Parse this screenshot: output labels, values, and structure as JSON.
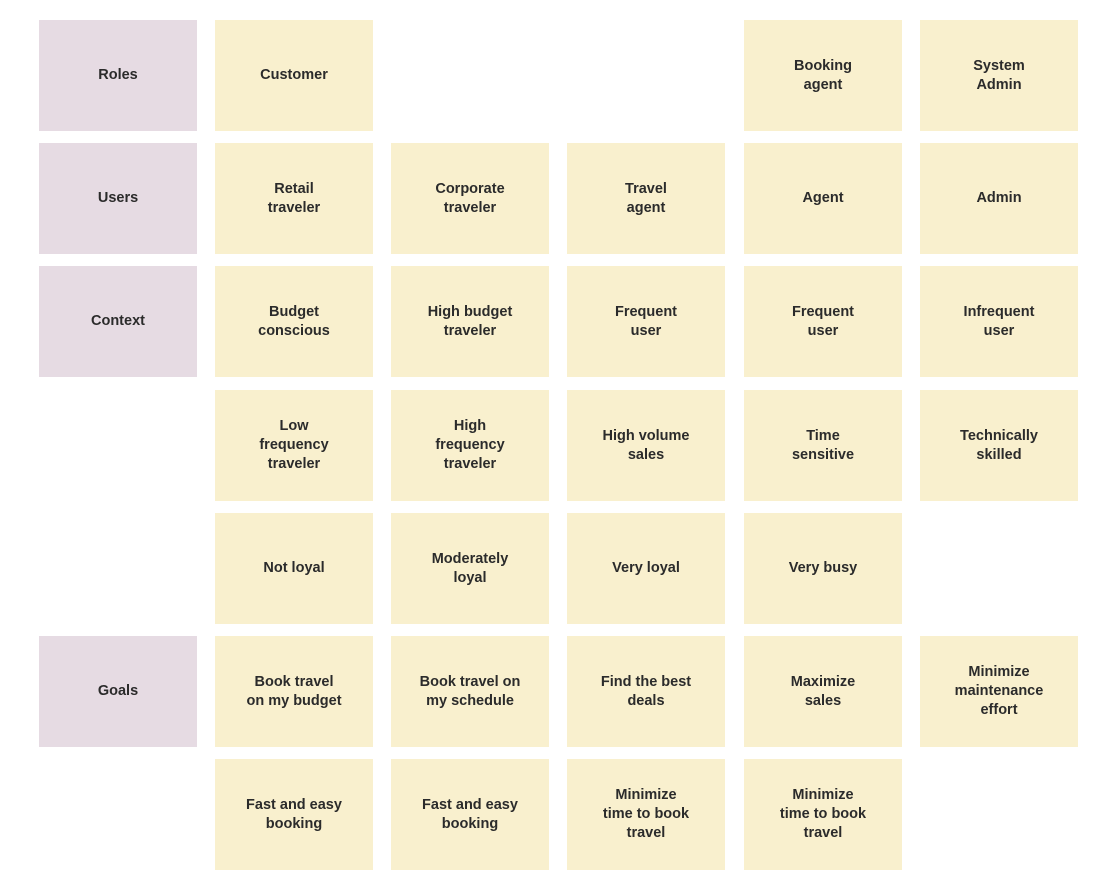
{
  "headers": {
    "roles": "Roles",
    "users": "Users",
    "context": "Context",
    "goals": "Goals"
  },
  "roles": {
    "customer": "Customer",
    "booking_agent": "Booking\nagent",
    "system_admin": "System\nAdmin"
  },
  "users": {
    "retail": "Retail\ntraveler",
    "corporate": "Corporate\ntraveler",
    "travel_agent": "Travel\nagent",
    "agent": "Agent",
    "admin": "Admin"
  },
  "context": {
    "row1": [
      "Budget\nconscious",
      "High budget\ntraveler",
      "Frequent\nuser",
      "Frequent\nuser",
      "Infrequent\nuser"
    ],
    "row2": [
      "Low\nfrequency\ntraveler",
      "High\nfrequency\ntraveler",
      "High volume\nsales",
      "Time\nsensitive",
      "Technically\nskilled"
    ],
    "row3": [
      "Not loyal",
      "Moderately\nloyal",
      "Very loyal",
      "Very busy"
    ]
  },
  "goals": {
    "row1": [
      "Book travel\non my budget",
      "Book travel on\nmy schedule",
      "Find the best\ndeals",
      "Maximize\nsales",
      "Minimize\nmaintenance\neffort"
    ],
    "row2": [
      "Fast and easy\nbooking",
      "Fast and easy\nbooking",
      "Minimize\ntime to book\ntravel",
      "Minimize\ntime to book\ntravel"
    ]
  },
  "colors": {
    "header_note": "#e6dbe3",
    "sticky_note": "#f9f0ce",
    "text": "#2b2b2b"
  }
}
